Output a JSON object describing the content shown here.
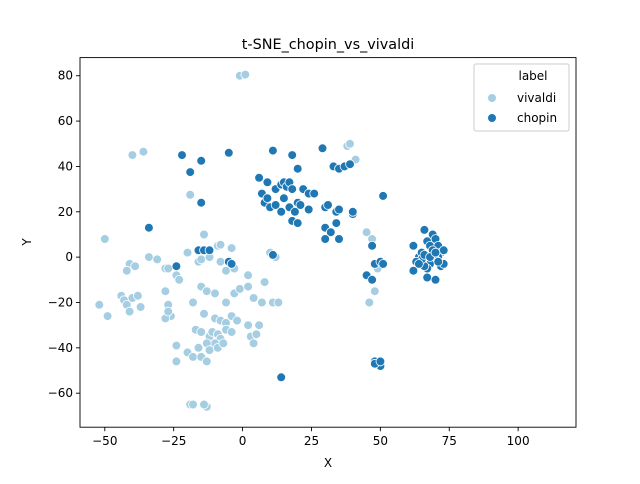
{
  "chart_data": {
    "type": "scatter",
    "title": "t-SNE_chopin_vs_vivaldi",
    "xlabel": "X",
    "ylabel": "Y",
    "xlim": [
      -59,
      121
    ],
    "ylim": [
      -75,
      88
    ],
    "xticks": [
      -50,
      -25,
      0,
      25,
      50,
      75,
      100
    ],
    "yticks": [
      -60,
      -40,
      -20,
      0,
      20,
      40,
      60,
      80
    ],
    "xtick_labels": [
      "−50",
      "−25",
      "0",
      "25",
      "50",
      "75",
      "100"
    ],
    "ytick_labels": [
      "−60",
      "−40",
      "−20",
      "0",
      "20",
      "40",
      "60",
      "80"
    ],
    "grid": false,
    "legend": {
      "title": "label",
      "placement": "top-right"
    },
    "series": [
      {
        "name": "vivaldi",
        "color": "#a6cee3",
        "points": [
          [
            -1,
            80
          ],
          [
            1,
            80.5
          ],
          [
            -40,
            45
          ],
          [
            -36,
            46.5
          ],
          [
            38,
            49
          ],
          [
            39,
            50
          ],
          [
            41,
            43
          ],
          [
            -19,
            27.5
          ],
          [
            -14,
            10
          ],
          [
            -9,
            5
          ],
          [
            -8,
            5.5
          ],
          [
            -4,
            4
          ],
          [
            -50,
            8
          ],
          [
            -34,
            0
          ],
          [
            -31,
            -1
          ],
          [
            -28,
            -5
          ],
          [
            -27,
            -5
          ],
          [
            -24,
            -8
          ],
          [
            -23,
            -10
          ],
          [
            -20,
            2
          ],
          [
            -16,
            -2
          ],
          [
            -15,
            -1
          ],
          [
            -12,
            0
          ],
          [
            -8,
            -2
          ],
          [
            -6,
            -6
          ],
          [
            -3,
            -5
          ],
          [
            -41,
            -3
          ],
          [
            -39,
            -4
          ],
          [
            -42,
            -6
          ],
          [
            -44,
            -17
          ],
          [
            -43,
            -19
          ],
          [
            -42,
            -21
          ],
          [
            -40,
            -18
          ],
          [
            -38,
            -17
          ],
          [
            -37,
            -22
          ],
          [
            -41,
            -24
          ],
          [
            -52,
            -21
          ],
          [
            -49,
            -26
          ],
          [
            -28,
            -15
          ],
          [
            -27,
            -21
          ],
          [
            -26,
            -26
          ],
          [
            -28,
            -27
          ],
          [
            -27,
            -24
          ],
          [
            -15,
            -13
          ],
          [
            -13,
            -15
          ],
          [
            -10,
            -16
          ],
          [
            -6,
            -20
          ],
          [
            -3,
            -16
          ],
          [
            -1,
            -14
          ],
          [
            2,
            -8
          ],
          [
            2,
            -13
          ],
          [
            -18,
            -20
          ],
          [
            -14,
            -25
          ],
          [
            -10,
            -27
          ],
          [
            -8,
            -28
          ],
          [
            -6,
            -29
          ],
          [
            -4,
            -26
          ],
          [
            -2,
            -28
          ],
          [
            -17,
            -32
          ],
          [
            -15,
            -33
          ],
          [
            -12,
            -35
          ],
          [
            -11,
            -33
          ],
          [
            -9,
            -34
          ],
          [
            -8,
            -36
          ],
          [
            -10,
            -38
          ],
          [
            -13,
            -38
          ],
          [
            -16,
            -40
          ],
          [
            -12,
            -41
          ],
          [
            -9,
            -40
          ],
          [
            -7,
            -38
          ],
          [
            -6,
            -32
          ],
          [
            -4,
            -33
          ],
          [
            -24,
            -39
          ],
          [
            -20,
            -42
          ],
          [
            -18,
            -44
          ],
          [
            -15,
            -44
          ],
          [
            -13,
            -46
          ],
          [
            -24,
            -46
          ],
          [
            2,
            -30
          ],
          [
            3,
            -35
          ],
          [
            4,
            -38
          ],
          [
            5,
            -34
          ],
          [
            6,
            -30
          ],
          [
            7,
            -20
          ],
          [
            4,
            -18
          ],
          [
            11,
            -20
          ],
          [
            13,
            -20
          ],
          [
            8,
            -11
          ],
          [
            10,
            2
          ],
          [
            12,
            0
          ],
          [
            -19,
            -65
          ],
          [
            -18,
            -65
          ],
          [
            -13,
            -66
          ],
          [
            -14,
            -65
          ],
          [
            45,
            11
          ],
          [
            47,
            8
          ],
          [
            49,
            -5
          ],
          [
            46,
            -20
          ],
          [
            48,
            -15
          ]
        ]
      },
      {
        "name": "chopin",
        "color": "#1f78b4",
        "points": [
          [
            -22,
            45
          ],
          [
            -15,
            42.5
          ],
          [
            -5,
            46
          ],
          [
            -19,
            37.5
          ],
          [
            -15,
            24
          ],
          [
            -34,
            13
          ],
          [
            -24,
            -4
          ],
          [
            -16,
            3
          ],
          [
            -14,
            3
          ],
          [
            -12,
            3
          ],
          [
            -5,
            -2
          ],
          [
            -4,
            -3
          ],
          [
            11,
            1
          ],
          [
            11,
            47
          ],
          [
            18,
            45
          ],
          [
            29,
            48
          ],
          [
            33,
            40
          ],
          [
            35,
            39
          ],
          [
            37,
            40
          ],
          [
            39,
            41
          ],
          [
            6,
            35
          ],
          [
            9,
            33
          ],
          [
            12,
            30
          ],
          [
            14,
            32
          ],
          [
            15,
            33
          ],
          [
            16,
            31
          ],
          [
            17,
            33
          ],
          [
            18,
            30
          ],
          [
            20,
            39
          ],
          [
            22,
            30
          ],
          [
            24,
            28
          ],
          [
            26,
            28
          ],
          [
            8,
            24
          ],
          [
            10,
            22
          ],
          [
            12,
            23
          ],
          [
            14,
            20
          ],
          [
            15,
            26
          ],
          [
            17,
            22
          ],
          [
            19,
            20
          ],
          [
            20,
            24
          ],
          [
            21,
            23
          ],
          [
            24,
            21
          ],
          [
            18,
            16
          ],
          [
            20,
            15
          ],
          [
            7,
            28
          ],
          [
            9,
            26
          ],
          [
            30,
            22
          ],
          [
            31,
            23
          ],
          [
            34,
            20
          ],
          [
            35,
            21
          ],
          [
            34,
            15
          ],
          [
            30,
            13
          ],
          [
            32,
            11
          ],
          [
            30,
            8
          ],
          [
            35,
            8
          ],
          [
            40,
            19
          ],
          [
            40,
            20
          ],
          [
            51,
            27
          ],
          [
            47,
            5
          ],
          [
            48,
            -3
          ],
          [
            50,
            -2
          ],
          [
            51,
            -3
          ],
          [
            45,
            -8
          ],
          [
            47,
            -10
          ],
          [
            14,
            -53
          ],
          [
            48,
            -46
          ],
          [
            49,
            -47
          ],
          [
            50,
            -48
          ],
          [
            48,
            -47
          ],
          [
            50,
            -46
          ],
          [
            62,
            5
          ],
          [
            64,
            0
          ],
          [
            65,
            2
          ],
          [
            66,
            12
          ],
          [
            67,
            7
          ],
          [
            68,
            5
          ],
          [
            69,
            10
          ],
          [
            70,
            8
          ],
          [
            71,
            5
          ],
          [
            72,
            2
          ],
          [
            73,
            3
          ],
          [
            71,
            0
          ],
          [
            70,
            -1
          ],
          [
            69,
            -2
          ],
          [
            68,
            -3
          ],
          [
            67,
            -5
          ],
          [
            66,
            -4
          ],
          [
            65,
            -1
          ],
          [
            63,
            -2
          ],
          [
            62,
            -6
          ],
          [
            67,
            -9
          ],
          [
            70,
            -10
          ],
          [
            72,
            -4
          ],
          [
            73,
            -3
          ],
          [
            69,
            3
          ],
          [
            66,
            1
          ],
          [
            68,
            0
          ],
          [
            70,
            2
          ],
          [
            71,
            -2
          ],
          [
            64,
            -3
          ]
        ]
      }
    ]
  }
}
